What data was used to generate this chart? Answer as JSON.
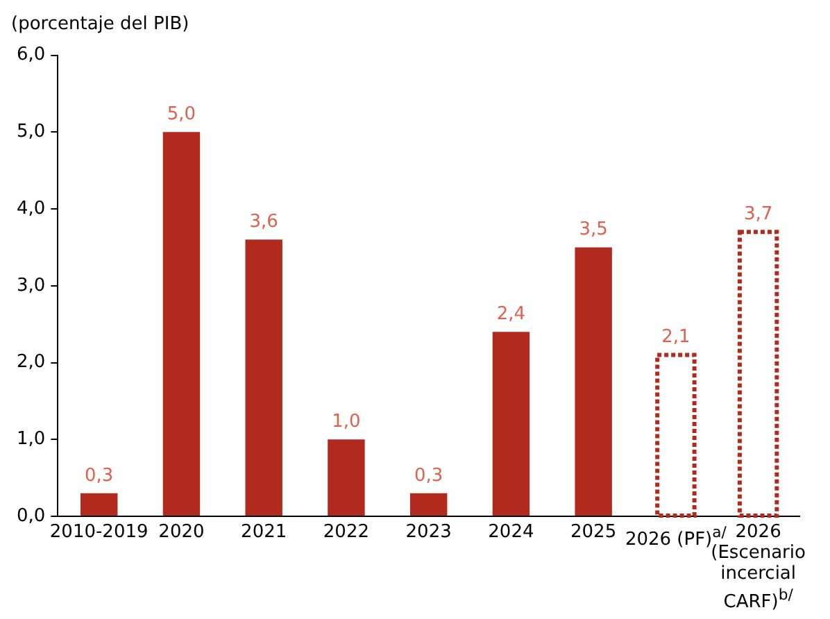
{
  "chart_data": {
    "type": "bar",
    "ylabel": "(porcentaje del PIB)",
    "categories": [
      "2010-2019",
      "2020",
      "2021",
      "2022",
      "2023",
      "2024",
      "2025",
      "2026 (PF)$^{a/}$",
      "2026 (Escenario incercial CARF)$^{b/}$"
    ],
    "series": [
      {
        "color": "#b22a1e",
        "values": [
          0.3,
          5.0,
          3.6,
          1.0,
          0.3,
          2.4,
          3.5,
          null,
          null
        ],
        "value_labels": [
          "0,3",
          "5,0",
          "3,6",
          "1,0",
          "0,3",
          "2,4",
          "3,5",
          null,
          null
        ]
      },
      {
        "color": "#b22a1e",
        "line_style": "dotted",
        "values": [
          null,
          null,
          null,
          null,
          null,
          null,
          null,
          2.1,
          3.7
        ],
        "value_labels": [
          null,
          null,
          null,
          null,
          null,
          null,
          null,
          "2,1",
          "3,7"
        ]
      }
    ],
    "ylim": [
      0,
      6
    ],
    "yticks": [
      {
        "value": 0,
        "label": "0,0"
      },
      {
        "value": 1,
        "label": "1,0"
      },
      {
        "value": 2,
        "label": "2,0"
      },
      {
        "value": 3,
        "label": "3,0"
      },
      {
        "value": 4,
        "label": "4,0"
      },
      {
        "value": 5,
        "label": "5,0"
      },
      {
        "value": 6,
        "label": "6,0"
      }
    ],
    "grid": false,
    "legend": false
  }
}
